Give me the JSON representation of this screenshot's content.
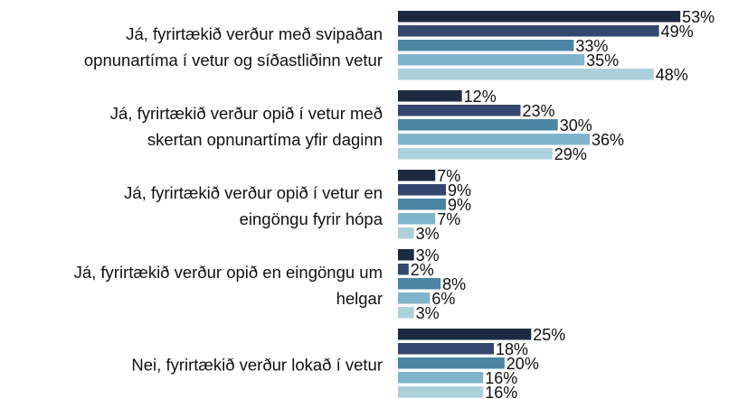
{
  "chart_data": {
    "type": "bar",
    "orientation": "horizontal",
    "categories": [
      "Já, fyrirtækið verður með svipaðan\nopnunartíma í vetur og síðastliðinn vetur",
      "Já, fyrirtækið verður opið í vetur með\nskertan opnunartíma yfir daginn",
      "Já, fyrirtækið verður opið í vetur en\neingöngu fyrir hópa",
      "Já, fyrirtækið verður opið en eingöngu um\nhelgar",
      "Nei, fyrirtækið verður lokað í vetur"
    ],
    "series": [
      {
        "color": "#1b2a40",
        "values": [
          53,
          12,
          7,
          3,
          25
        ],
        "value_labels": [
          "53%",
          "12%",
          "7%",
          "3%",
          "25%"
        ]
      },
      {
        "color": "#34476f",
        "values": [
          49,
          23,
          9,
          2,
          18
        ],
        "value_labels": [
          "49%",
          "23%",
          "9%",
          "2%",
          "18%"
        ]
      },
      {
        "color": "#4a86a1",
        "values": [
          33,
          30,
          9,
          8,
          20
        ],
        "value_labels": [
          "33%",
          "30%",
          "9%",
          "8%",
          "20%"
        ]
      },
      {
        "color": "#80b4cc",
        "values": [
          35,
          36,
          7,
          6,
          16
        ],
        "value_labels": [
          "35%",
          "36%",
          "7%",
          "6%",
          "16%"
        ]
      },
      {
        "color": "#abd1dc",
        "values": [
          48,
          29,
          3,
          3,
          16
        ],
        "value_labels": [
          "48%",
          "29%",
          "3%",
          "3%",
          "16%"
        ]
      }
    ]
  }
}
